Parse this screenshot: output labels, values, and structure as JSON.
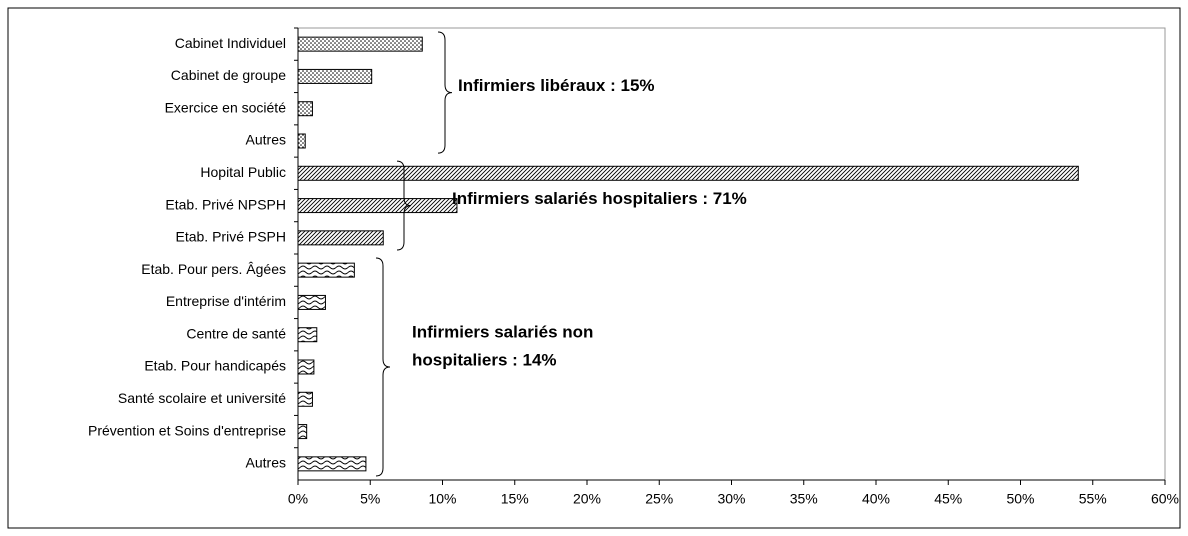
{
  "chart_data": {
    "type": "bar",
    "orientation": "horizontal",
    "groups": [
      {
        "annotation": [
          "Infirmiers libéraux : 15%"
        ],
        "pattern": "dots",
        "categories": [
          "Cabinet Individuel",
          "Cabinet de groupe",
          "Exercice en société",
          "Autres"
        ],
        "values": [
          8.6,
          5.1,
          1.0,
          0.5
        ]
      },
      {
        "annotation": [
          "Infirmiers salariés hospitaliers : 71%"
        ],
        "pattern": "hatch",
        "categories": [
          "Hopital Public",
          "Etab. Privé NPSPH",
          "Etab. Privé PSPH"
        ],
        "values": [
          54.0,
          11.0,
          5.9
        ]
      },
      {
        "annotation": [
          "Infirmiers salariés non",
          "hospitaliers : 14%"
        ],
        "pattern": "wave",
        "categories": [
          "Etab. Pour pers. Âgées",
          "Entreprise d'intérim",
          "Centre de santé",
          "Etab. Pour handicapés",
          "Santé scolaire et université",
          "Prévention et Soins d'entreprise",
          "Autres"
        ],
        "values": [
          3.9,
          1.9,
          1.3,
          1.1,
          1.0,
          0.6,
          4.7
        ]
      }
    ],
    "xlim": [
      0,
      60
    ],
    "xticks": [
      {
        "value": 0,
        "label": "0%"
      },
      {
        "value": 5,
        "label": "5%"
      },
      {
        "value": 10,
        "label": "10%"
      },
      {
        "value": 15,
        "label": "15%"
      },
      {
        "value": 20,
        "label": "20%"
      },
      {
        "value": 25,
        "label": "25%"
      },
      {
        "value": 30,
        "label": "30%"
      },
      {
        "value": 35,
        "label": "35%"
      },
      {
        "value": 40,
        "label": "40%"
      },
      {
        "value": 45,
        "label": "45%"
      },
      {
        "value": 50,
        "label": "50%"
      },
      {
        "value": 55,
        "label": "55%"
      },
      {
        "value": 60,
        "label": "60%"
      }
    ],
    "grid": false
  }
}
